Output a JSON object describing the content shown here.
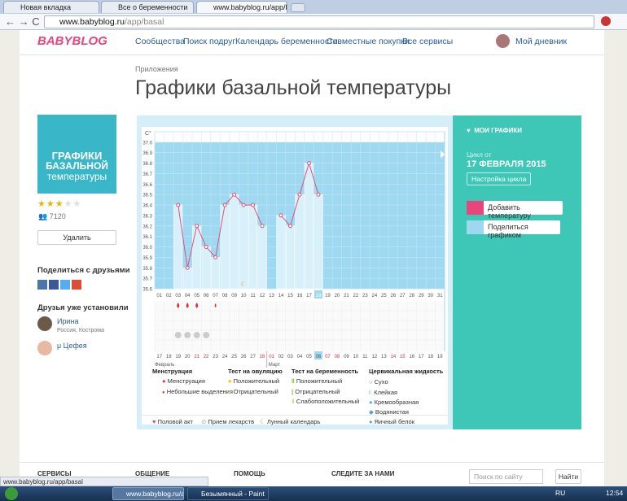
{
  "browser": {
    "tabs": [
      "Новая вкладка",
      "Все о беременности и д...",
      "www.babyblog.ru/app/ba..."
    ],
    "url_host": "www.babyblog.ru",
    "url_path": "/app/basal"
  },
  "nav": {
    "logo": "BABYBLOG",
    "links": [
      "Сообщества",
      "Поиск подруг",
      "Календарь беременности",
      "Совместные покупки",
      "Все сервисы"
    ],
    "diary": "Мой дневник"
  },
  "breadcrumb": "Приложения",
  "title": "Графики базальной температуры",
  "app": {
    "icon_text": [
      "ГРАФИКИ",
      "БАЗАЛЬНОЙ",
      "температуры"
    ],
    "rating": 3,
    "rating_max": 5,
    "installs": 7120,
    "delete": "Удалить",
    "share_heading": "Поделиться с друзьями",
    "friends_heading": "Друзья уже установили",
    "friends": [
      {
        "name": "Ирина",
        "location": "Россия, Кострома"
      },
      {
        "name": "μ Цефея"
      }
    ]
  },
  "chart_data": {
    "type": "line",
    "y_label": "С°",
    "categories": [
      "01",
      "02",
      "03",
      "04",
      "05",
      "06",
      "07",
      "08",
      "09",
      "10",
      "11",
      "12",
      "13",
      "14",
      "15",
      "16",
      "17",
      "18",
      "19",
      "20",
      "21",
      "22",
      "23",
      "24",
      "25",
      "26",
      "27",
      "28",
      "29",
      "30",
      "31"
    ],
    "dates": [
      "17",
      "18",
      "19",
      "20",
      "21",
      "22",
      "23",
      "24",
      "25",
      "26",
      "27",
      "28",
      "01",
      "02",
      "03",
      "04",
      "05",
      "06",
      "07",
      "08",
      "09",
      "10",
      "11",
      "12",
      "13",
      "14",
      "15",
      "16",
      "17",
      "18",
      "19"
    ],
    "months": [
      "Февраль",
      "Март"
    ],
    "values": [
      null,
      null,
      36.4,
      35.8,
      36.2,
      36.0,
      35.9,
      36.4,
      36.5,
      36.4,
      36.4,
      36.2,
      null,
      36.3,
      36.2,
      36.5,
      36.8,
      36.5,
      null,
      null,
      null,
      null,
      null,
      null,
      null,
      null,
      null,
      null,
      null,
      null,
      null
    ],
    "color": "#e0507a",
    "bar_color": "#d8f0fa",
    "ylim": [
      35.6,
      37.1
    ],
    "yticks": [
      35.6,
      35.7,
      35.8,
      35.9,
      {
        "value": 36.0,
        "label": "36.0"
      },
      36.1,
      36.2,
      36.3,
      36.4,
      36.5,
      36.6,
      36.7,
      36.8,
      36.9,
      {
        "value": 37.0,
        "label": "37.0"
      }
    ],
    "grid": true
  },
  "legend": {
    "menstruation": {
      "title": "Менструация",
      "items": [
        "Менструация",
        "Небольшие выделения"
      ]
    },
    "ovulation": {
      "title": "Тест на овуляцию",
      "items": [
        "Положительный",
        "Отрицательный"
      ]
    },
    "pregnancy": {
      "title": "Тест на беременность",
      "items": [
        "Положительный",
        "Отрицательный",
        "Слабоположительный"
      ]
    },
    "cervical": {
      "title": "Цервикальная жидкость",
      "items": [
        "Сухо",
        "Клейкая",
        "Кремообразная",
        "Водянистая",
        "Яичный белок"
      ]
    },
    "bottom": [
      "Половой акт",
      "Прием лекарств",
      "Лунный календарь"
    ]
  },
  "side": {
    "my_charts": "МОИ ГРАФИКИ",
    "cycle_from": "Цикл от",
    "cycle_date": "17 ФЕВРАЛЯ 2015",
    "cycle_settings": "Настройка цикла",
    "add_temp": "Добавить температуру",
    "share_chart": "Поделиться графиком"
  },
  "footer": {
    "columns": [
      "СЕРВИСЫ",
      "ОБЩЕНИЕ",
      "ПОМОЩЬ",
      "СЛЕДИТЕ ЗА НАМИ"
    ],
    "search_placeholder": "Поиск по сайту",
    "search_button": "Найти"
  },
  "status": "www.babyblog.ru/app/basal",
  "taskbar": {
    "items": [
      "www.babyblog.ru/a...",
      "Безымянный - Paint"
    ],
    "lang": "RU",
    "time": "12:54"
  }
}
